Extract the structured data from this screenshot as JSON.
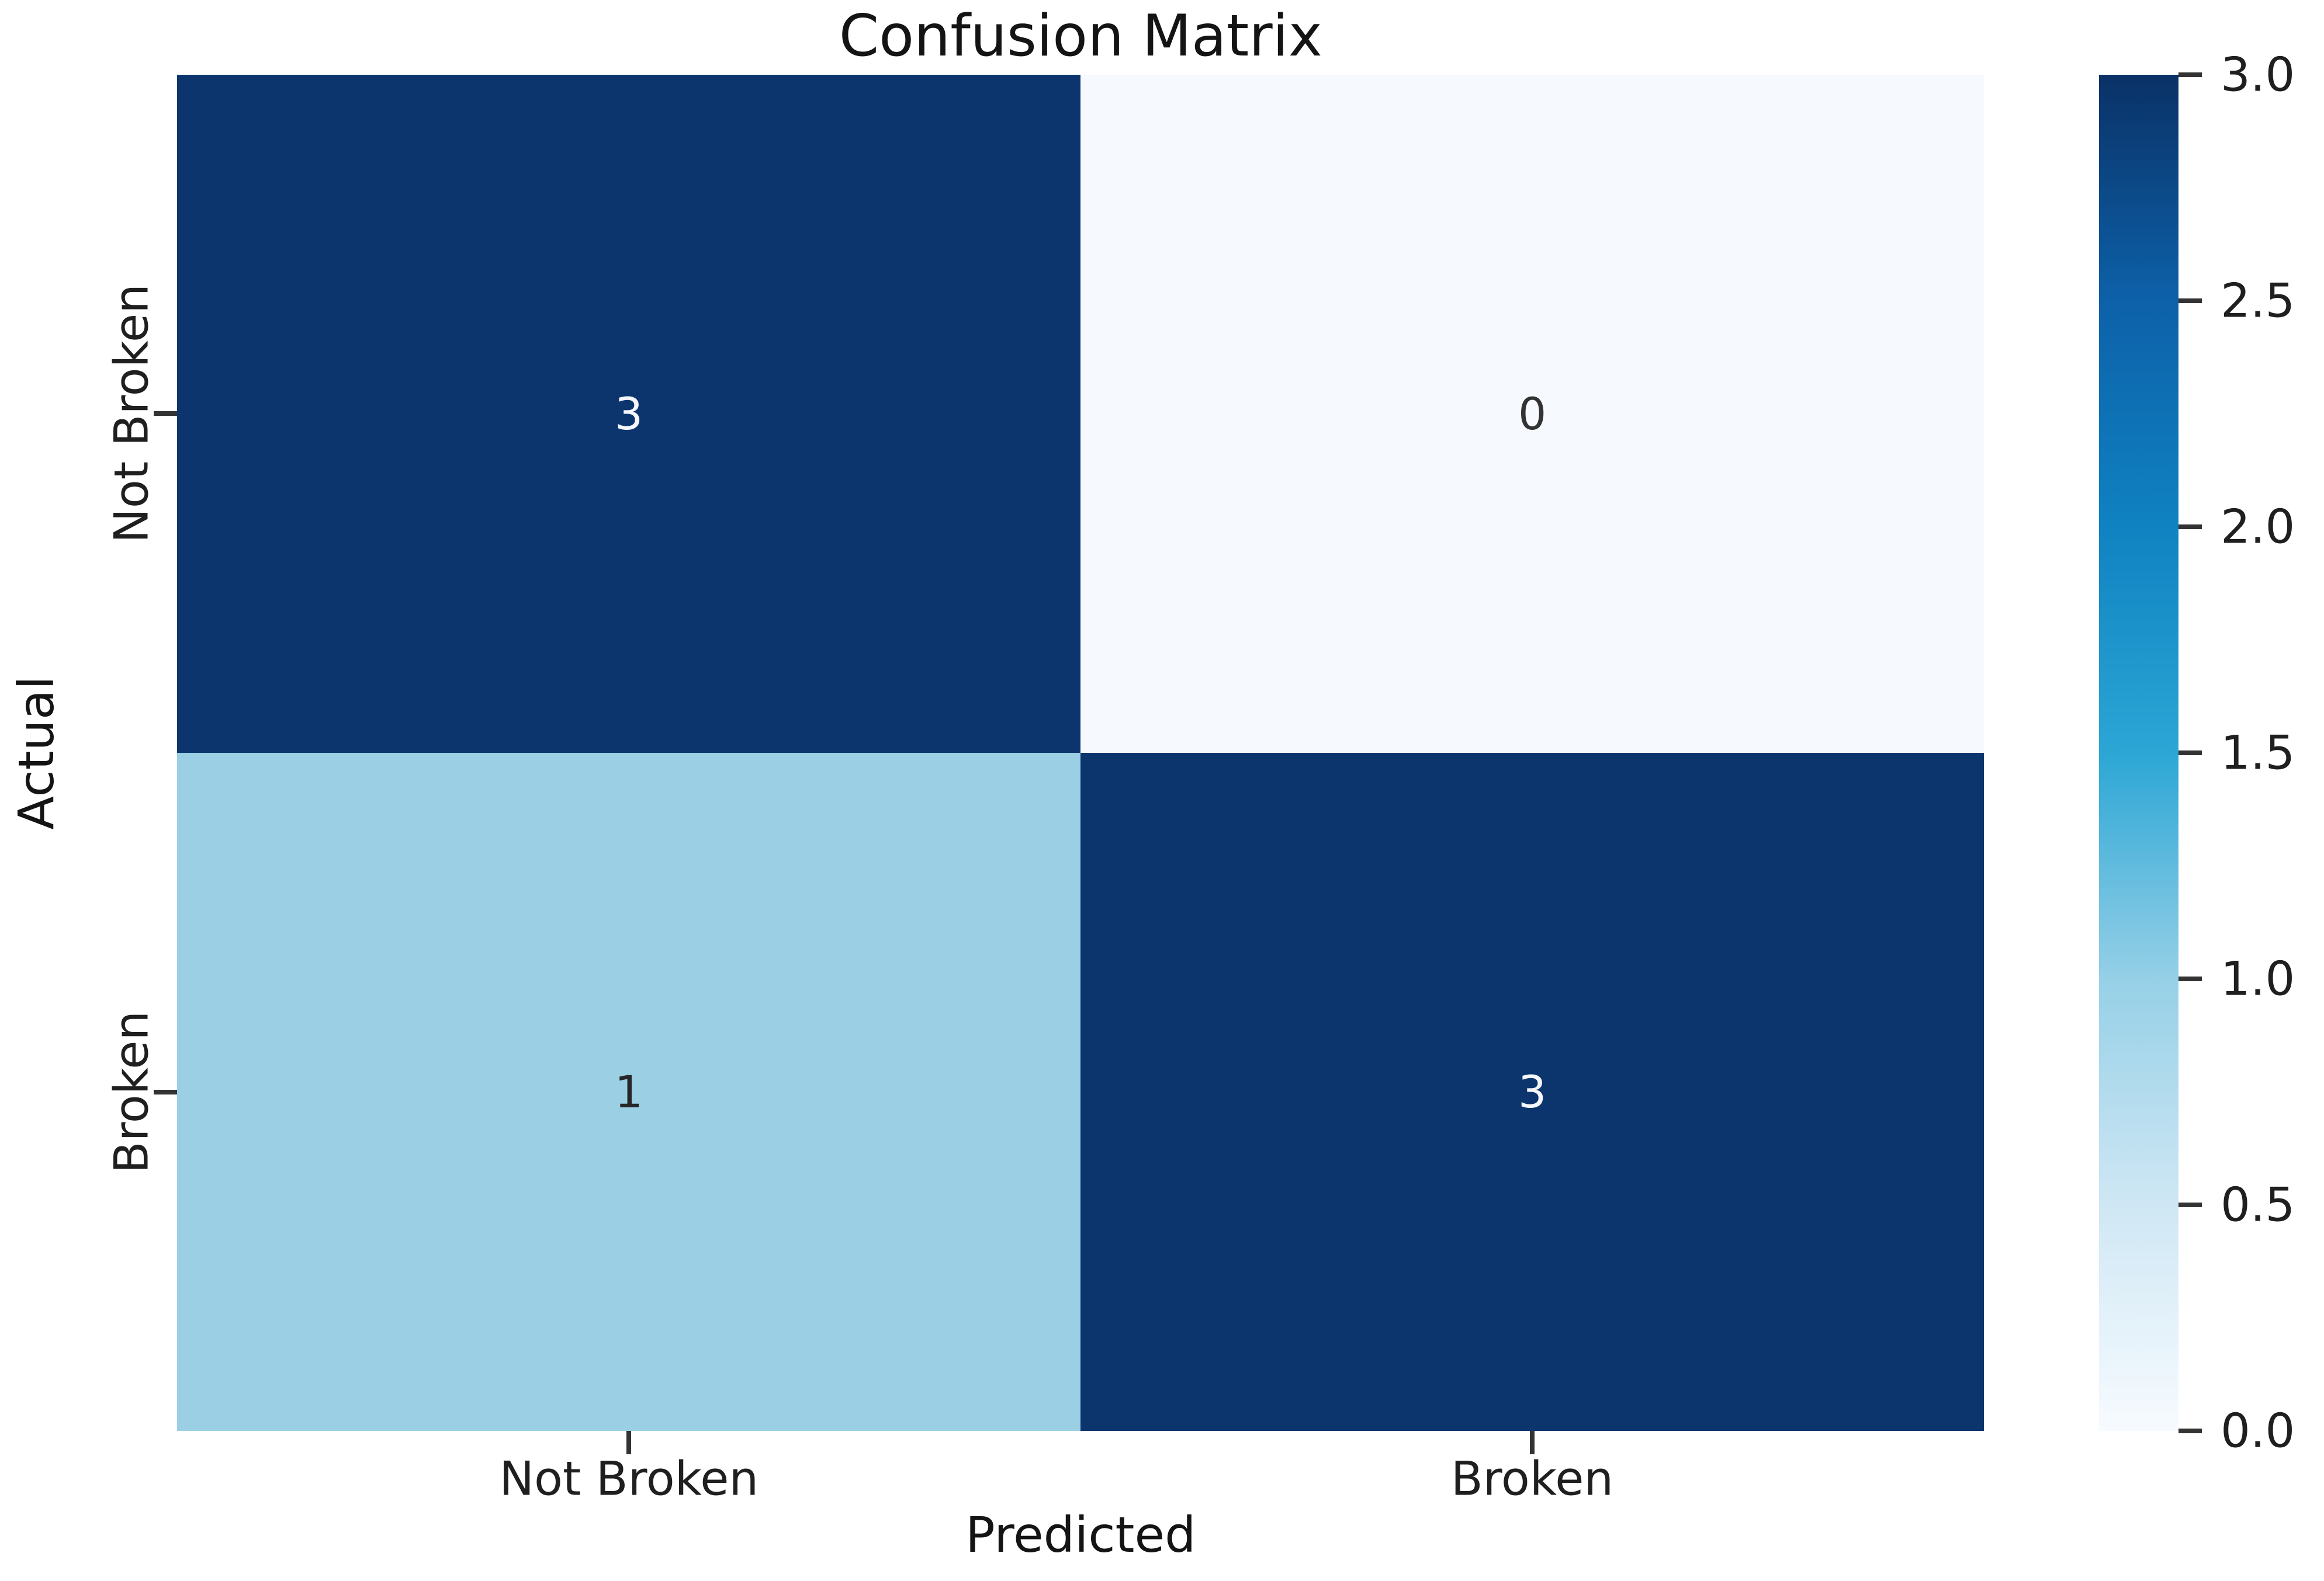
{
  "figure": {
    "background": "#ffffff"
  },
  "chart_data": {
    "type": "heatmap",
    "title": "Confusion Matrix",
    "xlabel": "Predicted",
    "ylabel": "Actual",
    "x_categories": [
      "Not Broken",
      "Broken"
    ],
    "y_categories": [
      "Not Broken",
      "Broken"
    ],
    "matrix": [
      [
        3,
        0
      ],
      [
        1,
        3
      ]
    ],
    "vmin": 0,
    "vmax": 3,
    "colormap": "Blues",
    "grid": false,
    "legend_position": "right-colorbar",
    "cells": [
      {
        "actual": "Not Broken",
        "predicted": "Not Broken",
        "value": "3",
        "bg": "#0c356d",
        "fg": "#f5f7fb"
      },
      {
        "actual": "Not Broken",
        "predicted": "Broken",
        "value": "0",
        "bg": "#f6fafe",
        "fg": "#333333"
      },
      {
        "actual": "Broken",
        "predicted": "Not Broken",
        "value": "1",
        "bg": "#9bd0e4",
        "fg": "#262626"
      },
      {
        "actual": "Broken",
        "predicted": "Broken",
        "value": "3",
        "bg": "#0c356d",
        "fg": "#f5f7fb"
      }
    ],
    "colorbar": {
      "ticks": [
        "3.0",
        "2.5",
        "2.0",
        "1.5",
        "1.0",
        "0.5",
        "0.0"
      ],
      "gradient_stops": [
        "#0a3166 0%",
        "#0d61a9 16.7%",
        "#0f82c1 33.3%",
        "#2ba6d5 50%",
        "#96d0e7 66.7%",
        "#cfe7f4 83.3%",
        "#f7fbff 100%"
      ]
    },
    "colors": {
      "title_text": "#141414",
      "tick_text": "#1f1f1f",
      "tick_mark": "#333333",
      "cell_dark": "#0c356d",
      "cell_light": "#9bd0e4",
      "cell_white": "#f6fafe"
    }
  }
}
